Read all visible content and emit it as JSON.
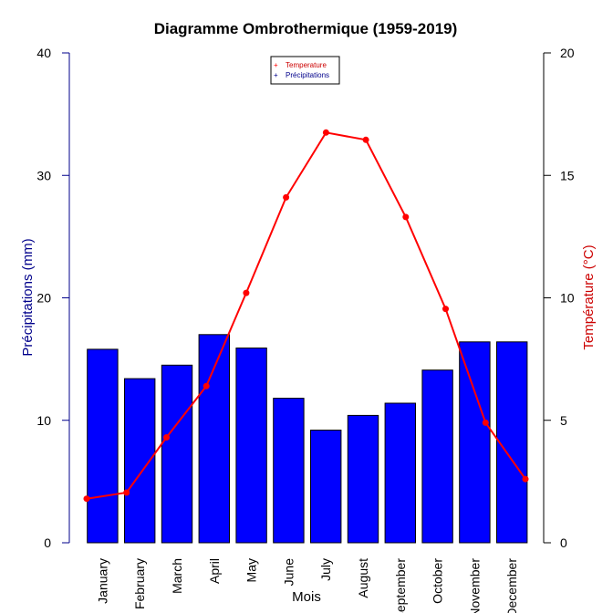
{
  "chart_data": {
    "type": "bar",
    "title": "Diagramme Ombrothermique (1959-2019)",
    "xlabel": "Mois",
    "categories": [
      "January",
      "February",
      "March",
      "April",
      "May",
      "June",
      "July",
      "August",
      "September",
      "October",
      "November",
      "December"
    ],
    "series": [
      {
        "name": "Précipitations",
        "type": "bar",
        "axis": "left",
        "color": "#0000ff",
        "values": [
          15.8,
          13.4,
          14.5,
          17.0,
          15.9,
          11.8,
          9.2,
          10.4,
          11.4,
          14.1,
          16.4,
          16.4
        ]
      },
      {
        "name": "Temperature",
        "type": "line",
        "axis": "right",
        "color": "#ff0000",
        "values": [
          1.8,
          2.05,
          4.3,
          6.4,
          10.2,
          14.1,
          16.75,
          16.45,
          13.3,
          9.55,
          4.9,
          2.6
        ]
      }
    ],
    "y_left": {
      "label": "Précipitations (mm)",
      "color": "#00008b",
      "ylim": [
        0,
        40
      ],
      "ticks": [
        "0",
        "10",
        "20",
        "30",
        "40"
      ]
    },
    "y_right": {
      "label": "Température (°C)",
      "color": "#cc0000",
      "ylim": [
        0,
        20
      ],
      "ticks": [
        "0",
        "5",
        "10",
        "15",
        "20"
      ]
    },
    "legend": {
      "placement": "top-center",
      "entries": [
        {
          "label": "Temperature",
          "color": "#ff0000",
          "marker": "+"
        },
        {
          "label": "Précipitations",
          "color": "#00008b",
          "marker": "+"
        }
      ]
    },
    "grid": false
  }
}
